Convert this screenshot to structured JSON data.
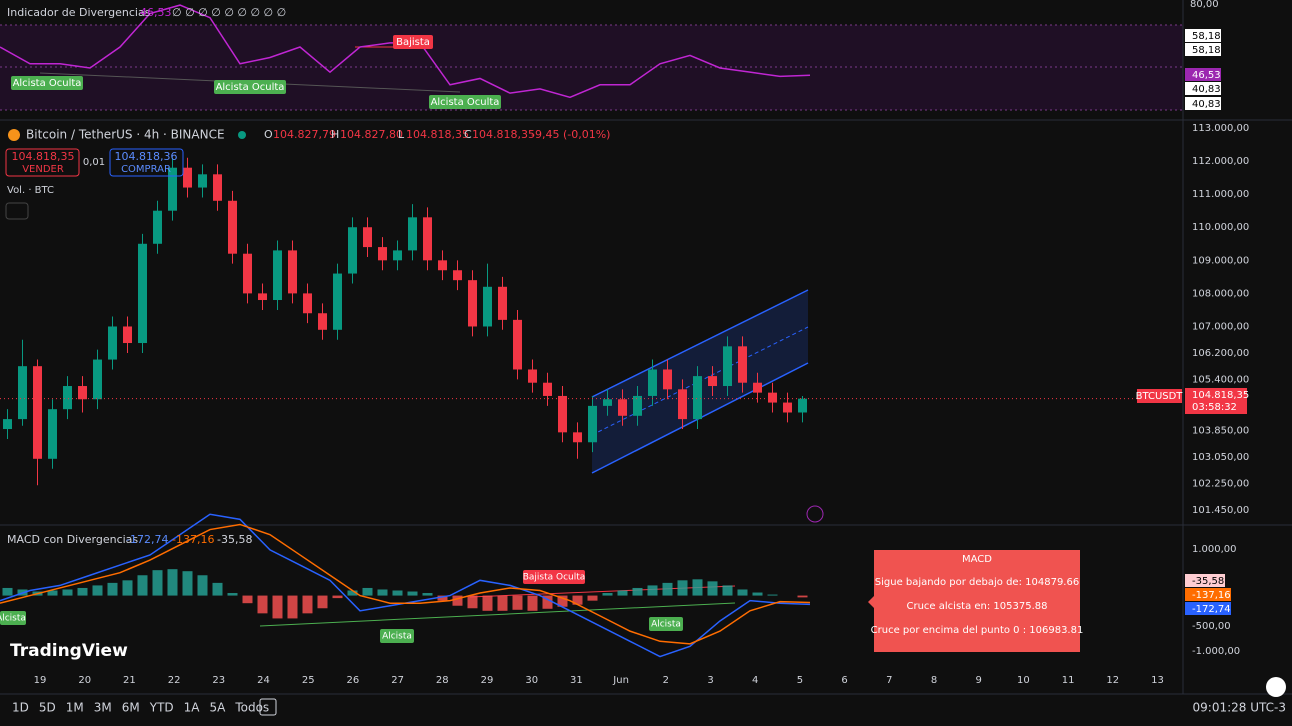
{
  "header": {
    "title": "Bitcoin / TetherUS · 4h · BINANCE",
    "o_label": "O",
    "o": "104.827,79",
    "h_label": "H",
    "h": "104.827,80",
    "l_label": "L",
    "l": "104.818,35",
    "c_label": "C",
    "c": "104.818,35",
    "change": "-9,45 (-0,01%)",
    "sell_price": "104.818,35",
    "sell": "VENDER",
    "spread": "0,01",
    "buy_price": "104.818,36",
    "buy": "COMPRAR",
    "volume": "Vol. · BTC"
  },
  "rsi_panel": {
    "title": "Indicador de Divergencias",
    "value": "46,53",
    "flags": "∅ ∅ ∅ ∅ ∅ ∅ ∅ ∅ ∅",
    "axis_labels": [
      "80,00",
      "58,18",
      "58,18",
      "46,53",
      "40,83",
      "40,83"
    ],
    "annotations": [
      "Bajista",
      "Alcista Oculta",
      "Alcista Oculta",
      "Alcista Oculta"
    ],
    "color": "#c026d3",
    "ylim": [
      29,
      81
    ],
    "values": [
      60,
      52,
      52,
      50,
      60,
      76,
      80,
      74,
      52,
      55,
      60,
      48,
      60,
      62,
      62,
      42,
      45,
      38,
      40,
      36,
      42,
      42,
      52,
      56,
      50,
      48,
      46,
      46.53
    ]
  },
  "price_chart": {
    "type": "candlestick",
    "up_color": "#089981",
    "down_color": "#f23645",
    "ylim": [
      101150,
      113000
    ],
    "yticks": [
      {
        "value": 113000,
        "label": "113.000,00"
      },
      {
        "value": 112000,
        "label": "112.000,00"
      },
      {
        "value": 111000,
        "label": "111.000,00"
      },
      {
        "value": 110000,
        "label": "110.000,00"
      },
      {
        "value": 109000,
        "label": "109.000,00"
      },
      {
        "value": 108000,
        "label": "108.000,00"
      },
      {
        "value": 107000,
        "label": "107.000,00"
      },
      {
        "value": 106200,
        "label": "106.200,00"
      },
      {
        "value": 105400,
        "label": "105.400,00"
      },
      {
        "value": 103850,
        "label": "103.850,00"
      },
      {
        "value": 103050,
        "label": "103.050,00"
      },
      {
        "value": 102250,
        "label": "102.250,00"
      },
      {
        "value": 101450,
        "label": "101.450,00"
      }
    ],
    "x_labels": [
      "19",
      "20",
      "21",
      "22",
      "23",
      "24",
      "25",
      "26",
      "27",
      "28",
      "29",
      "30",
      "31",
      "Jun",
      "2",
      "3",
      "4",
      "5",
      "6",
      "7",
      "8",
      "9",
      "10",
      "11",
      "12",
      "13"
    ],
    "open": [
      103900,
      104200,
      105800,
      103000,
      104500,
      105200,
      104800,
      106000,
      107000,
      106500,
      109500,
      110500,
      111800,
      111200,
      111600,
      110800,
      109200,
      108000,
      107800,
      109300,
      108000,
      107400,
      106900,
      108600,
      110000,
      109400,
      109000,
      109300,
      110300,
      109000,
      108700,
      108400,
      107000,
      108200,
      107200,
      105700,
      105300,
      104900,
      103800,
      103500,
      104600,
      104800,
      104300,
      104900,
      105700,
      105100,
      104200,
      105500,
      105200,
      106400,
      105300,
      105000,
      104700,
      104400
    ],
    "high": [
      104500,
      106600,
      106000,
      104800,
      105500,
      105500,
      106300,
      107300,
      107300,
      109800,
      110800,
      112100,
      112100,
      111900,
      111900,
      111100,
      109500,
      108300,
      109600,
      109600,
      108300,
      107700,
      108900,
      110300,
      110300,
      109700,
      109600,
      110700,
      110600,
      109300,
      109000,
      108700,
      108900,
      108500,
      107500,
      106000,
      105600,
      105200,
      104100,
      104900,
      105100,
      105100,
      105200,
      106000,
      106000,
      105400,
      105800,
      105800,
      106700,
      106700,
      105600,
      105300,
      105000,
      104900
    ],
    "low": [
      103600,
      104000,
      102200,
      102700,
      104200,
      104400,
      104500,
      105700,
      106200,
      106200,
      109200,
      110200,
      110900,
      110900,
      110500,
      108900,
      107700,
      107500,
      107500,
      107700,
      107100,
      106600,
      106600,
      108300,
      109100,
      108700,
      108700,
      109000,
      108700,
      108400,
      108100,
      106700,
      106700,
      106900,
      105400,
      105000,
      104600,
      103500,
      103000,
      103200,
      104300,
      104000,
      104000,
      104600,
      104800,
      103900,
      103900,
      104900,
      104900,
      105000,
      104700,
      104400,
      104100,
      104100
    ],
    "close": [
      104200,
      105800,
      103000,
      104500,
      105200,
      104800,
      106000,
      107000,
      106500,
      109500,
      110500,
      111800,
      111200,
      111600,
      110800,
      109200,
      108000,
      107800,
      109300,
      108000,
      107400,
      106900,
      108600,
      110000,
      109400,
      109000,
      109300,
      110300,
      109000,
      108700,
      108400,
      107000,
      108200,
      107200,
      105700,
      105300,
      104900,
      103800,
      103500,
      104600,
      104800,
      104300,
      104900,
      105700,
      105100,
      104200,
      105500,
      105200,
      106400,
      105300,
      105000,
      104700,
      104400,
      104818.35
    ],
    "symbol": "BTCUSDT",
    "last_price": "104.818,35",
    "countdown": "03:58:32"
  },
  "macd_panel": {
    "title": "MACD con Divergencias",
    "macd_value": "-172,74",
    "signal_value": "-137,16",
    "hist_value": "-35,58",
    "axis_labels": [
      "1.000,00",
      "-500,00",
      "-1.000,00"
    ],
    "tags": [
      "-35,58",
      "-137,16",
      "-172,74"
    ],
    "annotations": [
      "Alcista",
      "Bajista Oculta",
      "Alcista",
      "Alcista"
    ],
    "ylim": [
      -1800,
      1350
    ],
    "macd_color": "#2962ff",
    "signal_color": "#ff6d00",
    "hist_up_color": "#26a69a",
    "hist_down_color": "#ff5252",
    "hist": [
      150,
      120,
      80,
      100,
      120,
      150,
      200,
      250,
      300,
      400,
      500,
      520,
      480,
      400,
      250,
      50,
      -150,
      -350,
      -450,
      -450,
      -350,
      -250,
      -50,
      100,
      150,
      120,
      100,
      80,
      50,
      -100,
      -200,
      -250,
      -300,
      -300,
      -280,
      -300,
      -260,
      -220,
      -180,
      -100,
      50,
      100,
      150,
      200,
      250,
      300,
      320,
      280,
      200,
      120,
      60,
      20,
      0,
      -35.58
    ],
    "macd": [
      -100,
      100,
      200,
      400,
      600,
      800,
      1200,
      1600,
      1500,
      900,
      600,
      300,
      -300,
      -200,
      -100,
      0,
      300,
      200,
      0,
      -300,
      -600,
      -900,
      -1200,
      -1000,
      -500,
      -100,
      -150,
      -172.74
    ],
    "signal": [
      -150,
      0,
      150,
      300,
      450,
      700,
      1000,
      1300,
      1400,
      1200,
      800,
      400,
      0,
      -150,
      -150,
      -100,
      50,
      150,
      100,
      -100,
      -400,
      -700,
      -900,
      -950,
      -700,
      -300,
      -120,
      -137.16
    ]
  },
  "tooltip": {
    "title": "MACD",
    "lines": [
      "Sigue bajando por debajo de: 104879.66",
      "Cruce alcista en: 105375.88",
      "Cruce por encima del punto 0 : 106983.81"
    ]
  },
  "footer": {
    "logo": "TradingView",
    "ranges": [
      "1D",
      "5D",
      "1M",
      "3M",
      "6M",
      "YTD",
      "1A",
      "5A",
      "Todos"
    ],
    "time": "09:01:28 UTC-3"
  }
}
